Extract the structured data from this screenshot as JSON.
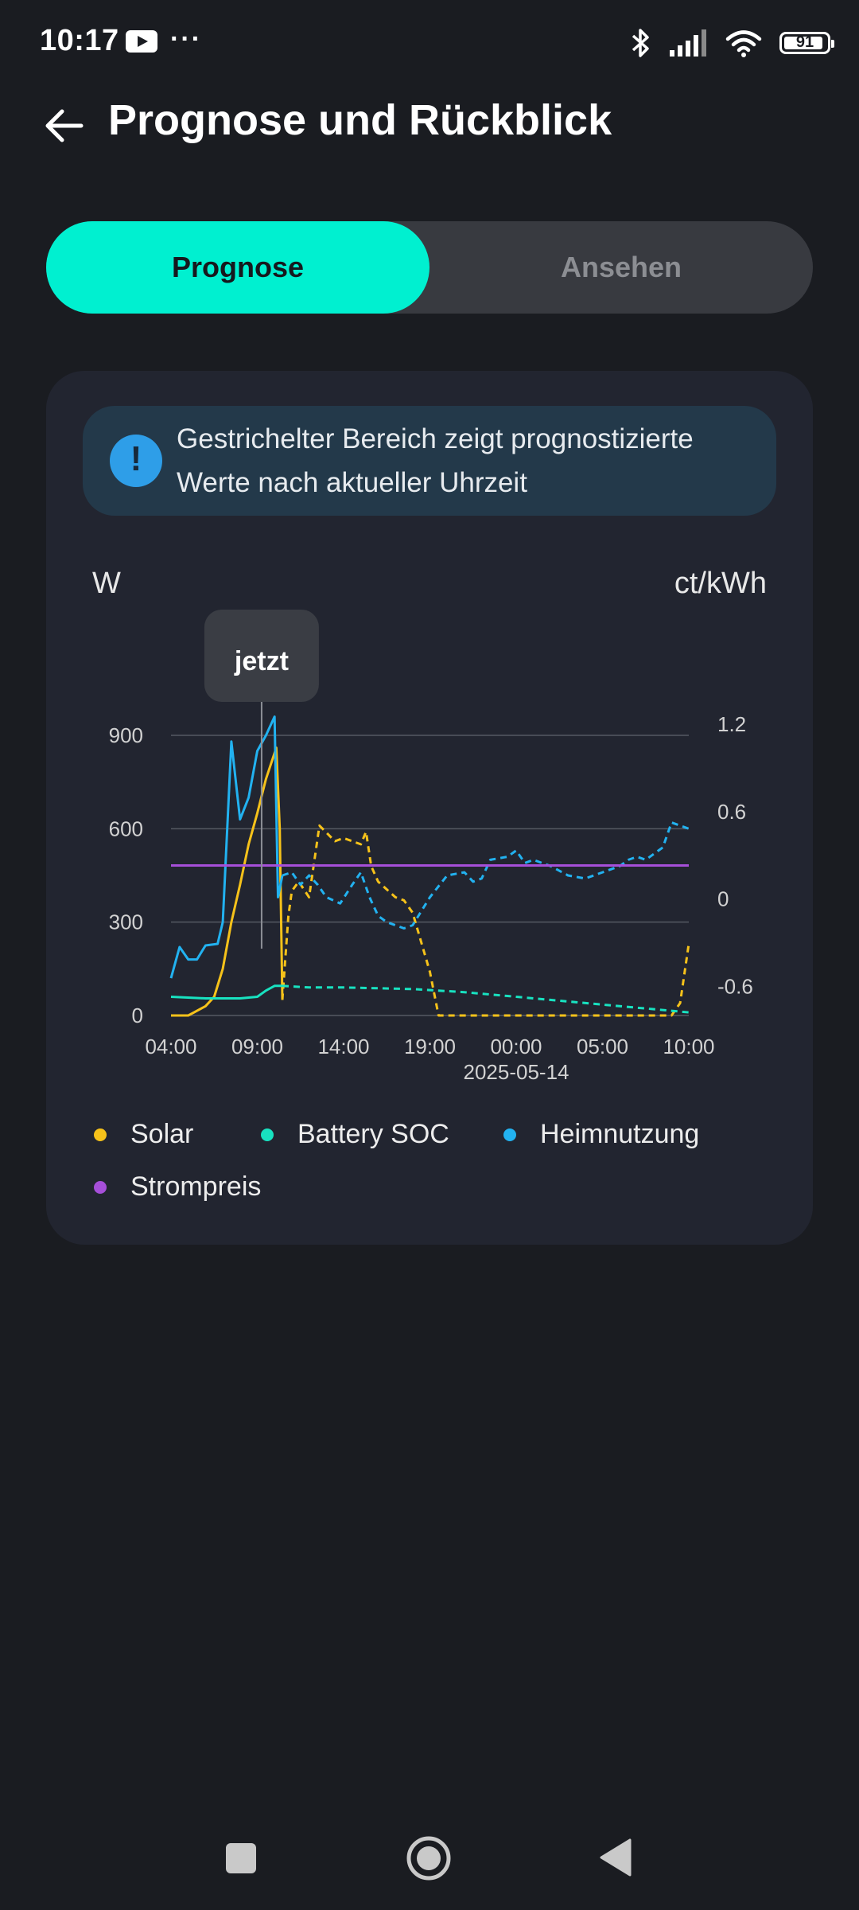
{
  "status_bar": {
    "time": "10:17",
    "more": "···",
    "battery": "91",
    "icons": [
      "youtube-icon",
      "more-icon",
      "bluetooth-icon",
      "cellular-signal-icon",
      "wifi-icon",
      "battery-icon"
    ]
  },
  "header": {
    "title": "Prognose und Rückblick",
    "back_icon": "arrow-left-icon"
  },
  "tabs": [
    {
      "label": "Prognose",
      "active": true
    },
    {
      "label": "Ansehen",
      "active": false
    }
  ],
  "info": {
    "icon": "exclamation-circle-icon",
    "text": "Gestrichelter Bereich zeigt prognostizierte Werte nach aktueller Uhrzeit"
  },
  "colors": {
    "accent": "#00f0d0",
    "solar": "#f6c21a",
    "battery_soc": "#18e2c0",
    "heimnutzung": "#22b2f0",
    "strompreis": "#a64fd9"
  },
  "chart_data": {
    "type": "line",
    "left_axis_unit": "W",
    "right_axis_unit": "ct/kWh",
    "now_label": "jetzt",
    "now_time": "09:15",
    "x_ticks": [
      "04:00",
      "09:00",
      "14:00",
      "19:00",
      "00:00",
      "05:00",
      "10:00"
    ],
    "x_sublabel": "2025-05-14",
    "x_range_hours": [
      0,
      30
    ],
    "y_left_ticks": [
      0,
      300,
      600,
      900
    ],
    "y_left_range": [
      0,
      900
    ],
    "y_right_ticks": [
      "1.2",
      "0.6",
      "0",
      "-0.6"
    ],
    "y_right_range": [
      -0.8,
      1.2
    ],
    "grid": true,
    "legend_position": "bottom",
    "series": [
      {
        "name": "Solar",
        "axis": "left",
        "color": "#f6c21a",
        "actual": [
          [
            0,
            0
          ],
          [
            1,
            0
          ],
          [
            2,
            30
          ],
          [
            2.5,
            60
          ],
          [
            3,
            150
          ],
          [
            3.5,
            300
          ],
          [
            4,
            420
          ],
          [
            4.5,
            550
          ],
          [
            5,
            650
          ],
          [
            5.5,
            760
          ],
          [
            6.1,
            860
          ],
          [
            6.3,
            600
          ],
          [
            6.45,
            50
          ]
        ],
        "forecast": [
          [
            6.45,
            50
          ],
          [
            6.8,
            320
          ],
          [
            7,
            400
          ],
          [
            7.4,
            430
          ],
          [
            8,
            380
          ],
          [
            8.6,
            610
          ],
          [
            9.5,
            560
          ],
          [
            10,
            570
          ],
          [
            11,
            550
          ],
          [
            11.3,
            590
          ],
          [
            11.6,
            480
          ],
          [
            12,
            430
          ],
          [
            13,
            380
          ],
          [
            13.5,
            370
          ],
          [
            14,
            330
          ],
          [
            15,
            140
          ],
          [
            15.5,
            0
          ],
          [
            29,
            0
          ],
          [
            29.5,
            40
          ],
          [
            30,
            230
          ]
        ]
      },
      {
        "name": "Battery SOC",
        "axis": "left",
        "color": "#18e2c0",
        "actual": [
          [
            0,
            60
          ],
          [
            2,
            55
          ],
          [
            4,
            55
          ],
          [
            5,
            60
          ],
          [
            5.5,
            80
          ],
          [
            6,
            95
          ],
          [
            6.45,
            95
          ]
        ],
        "forecast": [
          [
            6.45,
            95
          ],
          [
            8,
            90
          ],
          [
            10,
            90
          ],
          [
            14,
            85
          ],
          [
            17,
            75
          ],
          [
            20,
            60
          ],
          [
            23,
            45
          ],
          [
            26,
            30
          ],
          [
            29,
            15
          ],
          [
            30,
            10
          ]
        ]
      },
      {
        "name": "Heimnutzung",
        "axis": "left",
        "color": "#22b2f0",
        "actual": [
          [
            0,
            120
          ],
          [
            0.5,
            220
          ],
          [
            1,
            180
          ],
          [
            1.5,
            180
          ],
          [
            2,
            225
          ],
          [
            2.7,
            230
          ],
          [
            3,
            300
          ],
          [
            3.5,
            880
          ],
          [
            4,
            630
          ],
          [
            4.5,
            700
          ],
          [
            5,
            850
          ],
          [
            5.5,
            900
          ],
          [
            6,
            960
          ],
          [
            6.2,
            380
          ],
          [
            6.45,
            450
          ]
        ],
        "forecast": [
          [
            6.45,
            450
          ],
          [
            7,
            460
          ],
          [
            7.5,
            420
          ],
          [
            8,
            450
          ],
          [
            8.5,
            420
          ],
          [
            9,
            380
          ],
          [
            9.8,
            360
          ],
          [
            10.5,
            420
          ],
          [
            11,
            460
          ],
          [
            11.5,
            380
          ],
          [
            12,
            320
          ],
          [
            12.5,
            300
          ],
          [
            13,
            290
          ],
          [
            13.5,
            280
          ],
          [
            14,
            290
          ],
          [
            15,
            380
          ],
          [
            16,
            450
          ],
          [
            17,
            460
          ],
          [
            17.5,
            430
          ],
          [
            18,
            440
          ],
          [
            18.5,
            500
          ],
          [
            19.5,
            510
          ],
          [
            20,
            530
          ],
          [
            20.5,
            490
          ],
          [
            21,
            500
          ],
          [
            21.5,
            490
          ],
          [
            22,
            480
          ],
          [
            23,
            450
          ],
          [
            24,
            440
          ],
          [
            25,
            460
          ],
          [
            26,
            480
          ],
          [
            26.5,
            500
          ],
          [
            27,
            510
          ],
          [
            27.5,
            500
          ],
          [
            28,
            520
          ],
          [
            28.5,
            540
          ],
          [
            29,
            620
          ],
          [
            29.5,
            610
          ],
          [
            30,
            600
          ]
        ]
      },
      {
        "name": "Strompreis",
        "axis": "right",
        "color": "#a64fd9",
        "actual": [
          [
            0,
            0.23
          ],
          [
            30,
            0.23
          ]
        ],
        "forecast": []
      }
    ]
  },
  "legend": [
    {
      "label": "Solar",
      "color": "#f6c21a"
    },
    {
      "label": "Battery SOC",
      "color": "#18e2c0"
    },
    {
      "label": "Heimnutzung",
      "color": "#22b2f0"
    },
    {
      "label": "Strompreis",
      "color": "#a64fd9"
    }
  ],
  "nav_bar": {
    "icons": [
      "recents-square-icon",
      "home-circle-icon",
      "back-triangle-icon"
    ]
  }
}
